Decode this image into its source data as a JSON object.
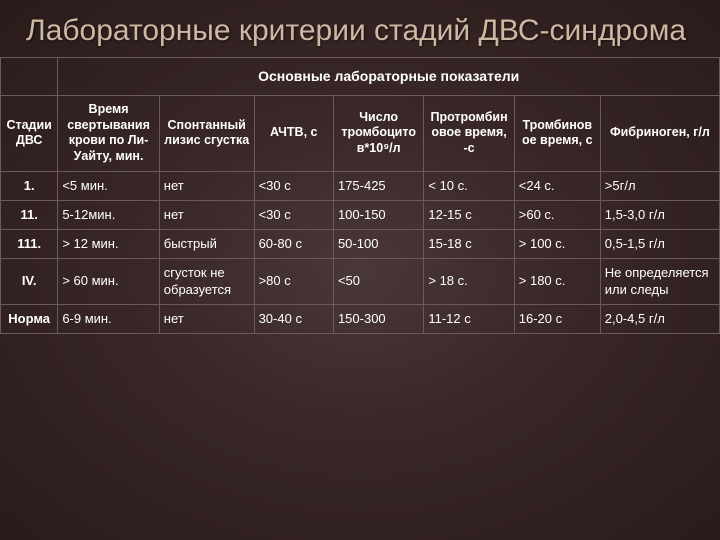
{
  "title": "Лабораторные критерии стадий ДВС-синдрома",
  "table": {
    "merged_header": "Основные лабораторные показатели",
    "columns": [
      "Стадии ДВС",
      "Время свертывания крови по Ли-Уайту, мин.",
      "Спонтанный лизис сгустка",
      "АЧТВ, с",
      "Число тромбоцитов*10⁹/л",
      "Протромбиновое время, -с",
      "Тромбиновое время, с",
      "Фибриноген, г/л"
    ],
    "rows": [
      {
        "stage": "1.",
        "cells": [
          "<5 мин.",
          "нет",
          "<30 с",
          "175-425",
          "< 10 с.",
          "<24 с.",
          ">5г/л"
        ]
      },
      {
        "stage": "11.",
        "cells": [
          "5-12мин.",
          "нет",
          "<30 с",
          "100-150",
          "12-15 с",
          ">60 с.",
          "1,5-3,0 г/л"
        ]
      },
      {
        "stage": "111.",
        "cells": [
          "> 12 мин.",
          "быстрый",
          "60-80 с",
          "50-100",
          "15-18 с",
          "> 100 с.",
          "0,5-1,5 г/л"
        ]
      },
      {
        "stage": "IV.",
        "cells": [
          "> 60 мин.",
          "сгусток не образуется",
          ">80 с",
          "<50",
          "> 18 с.",
          "> 180 с.",
          "Не определяется или следы"
        ]
      },
      {
        "stage": "Норма",
        "cells": [
          "6-9 мин.",
          "нет",
          "30-40 с",
          "150-300",
          "11-12 с",
          "16-20 с",
          "2,0-4,5 г/л"
        ]
      }
    ]
  },
  "style": {
    "title_color": "#cbb9a3",
    "text_color": "#ffffff",
    "border_color": "#6a5a5a",
    "bg_gradient": [
      "#4a3838",
      "#2a1a1a"
    ]
  }
}
